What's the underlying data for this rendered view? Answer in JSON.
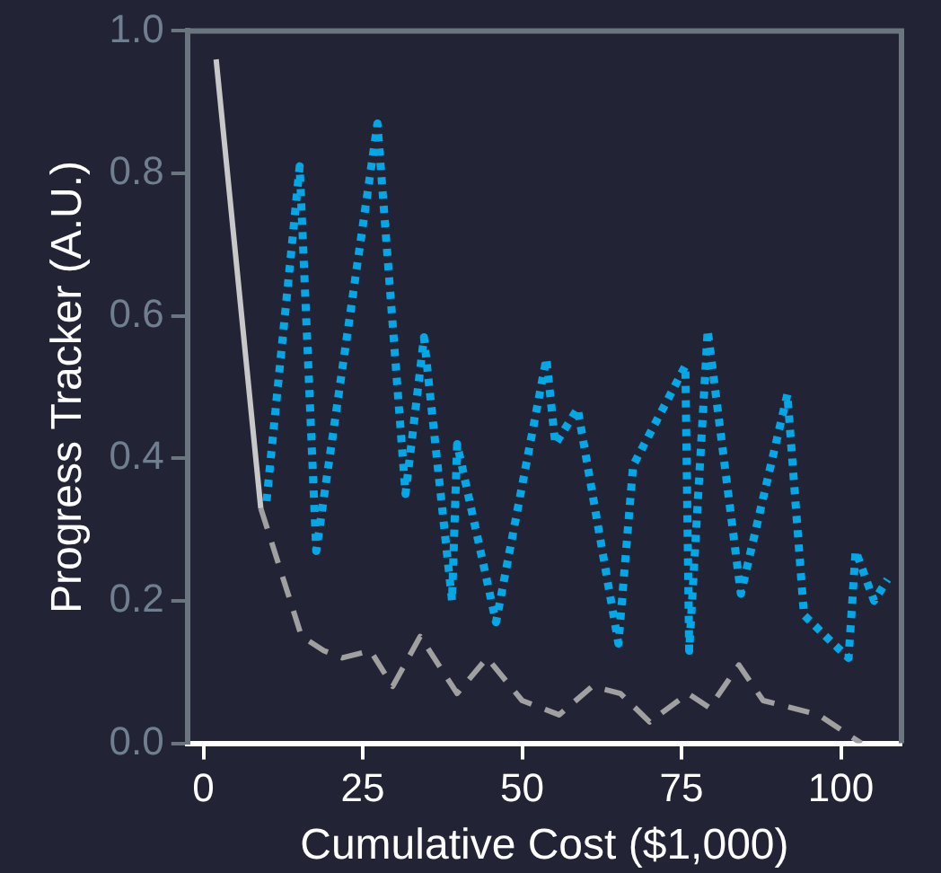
{
  "chart_data": {
    "type": "line",
    "xlabel": "Cumulative Cost ($1,000)",
    "ylabel": "Progress Tracker (A.U.)",
    "xlim": [
      -2.5,
      109.5
    ],
    "xticks": [
      0,
      25,
      50,
      75,
      100
    ],
    "ylim": [
      0,
      1
    ],
    "yticks": [
      {
        "value": 0,
        "label": "0.0"
      },
      {
        "value": 0.2,
        "label": "0.2"
      },
      {
        "value": 0.4,
        "label": "0.4"
      },
      {
        "value": 0.6,
        "label": "0.6"
      },
      {
        "value": 0.8,
        "label": "0.8"
      },
      {
        "value": 1,
        "label": "1.0"
      }
    ],
    "grid": false,
    "legend": false,
    "marker": "none",
    "series": [
      {
        "color": "#c8c8c8",
        "line_style": "solid",
        "x": [
          2.0,
          9.0
        ],
        "values": [
          0.96,
          0.33
        ]
      },
      {
        "color": "#a0a0a0",
        "line_style": "dashed",
        "x": [
          9.0,
          15.4,
          18.9,
          21.8,
          26.2,
          29.7,
          34.0,
          39.8,
          44.5,
          50.0,
          55.8,
          61.0,
          65.4,
          70.0,
          76.0,
          79.4,
          84.0,
          87.8,
          96.5,
          103.2
        ],
        "values": [
          0.33,
          0.15,
          0.13,
          0.12,
          0.13,
          0.08,
          0.15,
          0.07,
          0.12,
          0.06,
          0.04,
          0.08,
          0.07,
          0.03,
          0.07,
          0.05,
          0.11,
          0.06,
          0.04,
          0.0
        ]
      },
      {
        "color": "#00a8e8",
        "line_style": "dotted",
        "x": [
          9.9,
          15.1,
          17.7,
          27.3,
          31.7,
          34.6,
          39.0,
          39.8,
          45.9,
          53.8,
          55.2,
          58.7,
          65.1,
          67.4,
          75.6,
          76.2,
          79.1,
          84.3,
          91.6,
          94.2,
          98.8,
          101.2,
          102.3,
          105.2,
          107.3
        ],
        "values": [
          0.34,
          0.81,
          0.27,
          0.87,
          0.35,
          0.57,
          0.2,
          0.42,
          0.17,
          0.54,
          0.42,
          0.47,
          0.14,
          0.39,
          0.53,
          0.13,
          0.58,
          0.21,
          0.49,
          0.18,
          0.14,
          0.12,
          0.27,
          0.2,
          0.23
        ]
      }
    ]
  }
}
